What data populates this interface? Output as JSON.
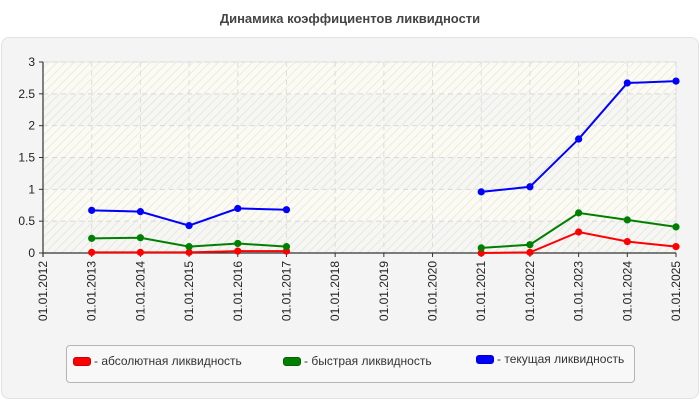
{
  "title": "Динамика коэффициентов ликвидности",
  "chart_data": {
    "type": "line",
    "title": "Динамика коэффициентов ликвидности",
    "xlabel": "",
    "ylabel": "",
    "ylim": [
      0,
      3
    ],
    "yticks": [
      "0",
      "0.5",
      "1",
      "1.5",
      "2",
      "2.5",
      "3"
    ],
    "grid": true,
    "legend_position": "bottom",
    "categories": [
      "01.01.2012",
      "01.01.2013",
      "01.01.2014",
      "01.01.2015",
      "01.01.2016",
      "01.01.2017",
      "01.01.2018",
      "01.01.2019",
      "01.01.2020",
      "01.01.2021",
      "01.01.2022",
      "01.01.2023",
      "01.01.2024",
      "01.01.2025"
    ],
    "series": [
      {
        "name": "- абсолютная ликвидность",
        "color": "#ff0000",
        "values": [
          null,
          0.01,
          0.01,
          0.01,
          0.03,
          0.03,
          null,
          null,
          null,
          0.0,
          0.01,
          0.33,
          0.18,
          0.1
        ]
      },
      {
        "name": "- быстрая ликвидность",
        "color": "#008000",
        "values": [
          null,
          0.23,
          0.24,
          0.1,
          0.15,
          0.1,
          null,
          null,
          null,
          0.08,
          0.13,
          0.63,
          0.52,
          0.41
        ]
      },
      {
        "name": "- текущая ликвидность",
        "color": "#0000ff",
        "values": [
          null,
          0.67,
          0.65,
          0.43,
          0.7,
          0.68,
          null,
          null,
          null,
          0.96,
          1.04,
          1.79,
          2.67,
          2.7
        ]
      }
    ]
  },
  "legend": [
    {
      "label": "- абсолютная ликвидность",
      "color": "#ff0000"
    },
    {
      "label": "- быстрая ликвидность",
      "color": "#008000"
    },
    {
      "label": "- текущая ликвидность",
      "color": "#0000ff"
    }
  ]
}
